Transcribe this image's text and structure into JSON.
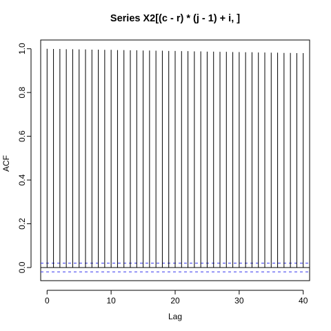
{
  "chart_data": {
    "type": "bar",
    "title": "Series  X2[(c - r) * (j - 1) + i, ]",
    "xlabel": "Lag",
    "ylabel": "ACF",
    "xlim": [
      -1,
      41
    ],
    "ylim": [
      -0.06,
      1.04
    ],
    "x_ticks": [
      0,
      10,
      20,
      30,
      40
    ],
    "y_ticks": [
      0.0,
      0.2,
      0.4,
      0.6,
      0.8,
      1.0
    ],
    "y_tick_labels": [
      "0.0",
      "0.2",
      "0.4",
      "0.6",
      "0.8",
      "1.0"
    ],
    "lags": [
      0,
      1,
      2,
      3,
      4,
      5,
      6,
      7,
      8,
      9,
      10,
      11,
      12,
      13,
      14,
      15,
      16,
      17,
      18,
      19,
      20,
      21,
      22,
      23,
      24,
      25,
      26,
      27,
      28,
      29,
      30,
      31,
      32,
      33,
      34,
      35,
      36,
      37,
      38,
      39,
      40
    ],
    "acf": [
      1.0,
      0.999,
      0.999,
      0.998,
      0.998,
      0.997,
      0.997,
      0.996,
      0.996,
      0.995,
      0.995,
      0.994,
      0.994,
      0.993,
      0.993,
      0.992,
      0.992,
      0.991,
      0.991,
      0.99,
      0.99,
      0.989,
      0.989,
      0.988,
      0.988,
      0.987,
      0.987,
      0.986,
      0.986,
      0.985,
      0.985,
      0.984,
      0.984,
      0.983,
      0.983,
      0.982,
      0.982,
      0.981,
      0.981,
      0.98,
      0.98
    ],
    "ci": 0.02,
    "colors": {
      "bars": "#000000",
      "ci": "#3333ee",
      "zero": "#000000"
    }
  }
}
